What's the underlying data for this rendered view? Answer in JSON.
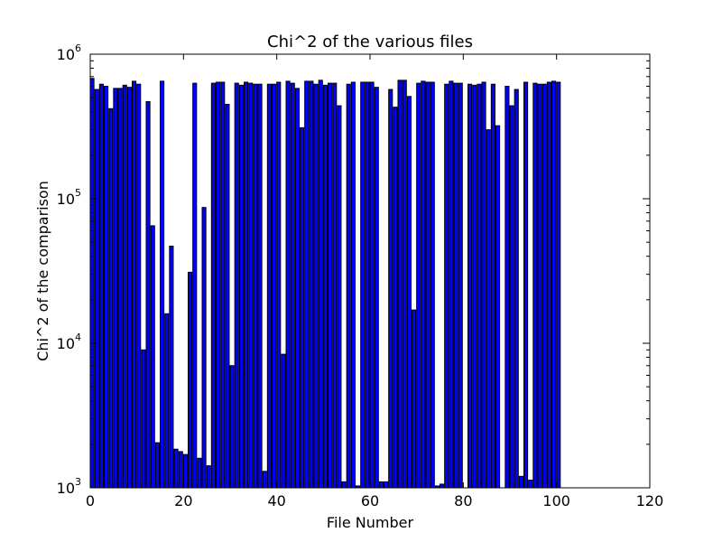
{
  "chart_data": {
    "type": "bar",
    "title": "Chi^2 of the various files",
    "xlabel": "File Number",
    "ylabel": "Chi^2 of the comparison",
    "xlim": [
      0,
      120
    ],
    "ylim": [
      1000,
      1000000
    ],
    "yscale": "log",
    "x_ticks": [
      0,
      20,
      40,
      60,
      80,
      100,
      120
    ],
    "y_ticks": [
      {
        "value": 1000,
        "base": "10",
        "exp": "3"
      },
      {
        "value": 10000,
        "base": "10",
        "exp": "4"
      },
      {
        "value": 100000,
        "base": "10",
        "exp": "5"
      },
      {
        "value": 1000000,
        "base": "10",
        "exp": "6"
      }
    ],
    "bar_width": 0.8,
    "bar_color": "#0000ff",
    "x": [
      0,
      1,
      2,
      3,
      4,
      5,
      6,
      7,
      8,
      9,
      10,
      11,
      12,
      13,
      14,
      15,
      16,
      17,
      18,
      19,
      20,
      21,
      22,
      23,
      24,
      25,
      26,
      27,
      28,
      29,
      30,
      31,
      32,
      33,
      34,
      35,
      36,
      37,
      38,
      39,
      40,
      41,
      42,
      43,
      44,
      45,
      46,
      47,
      48,
      49,
      50,
      51,
      52,
      53,
      54,
      55,
      56,
      57,
      58,
      59,
      60,
      61,
      62,
      63,
      64,
      65,
      66,
      67,
      68,
      69,
      70,
      71,
      72,
      73,
      74,
      75,
      76,
      77,
      78,
      79,
      80,
      81,
      82,
      83,
      84,
      85,
      86,
      87,
      88,
      89,
      90,
      91,
      92,
      93,
      94,
      95,
      96,
      97,
      98,
      99,
      100
    ],
    "values": [
      680000,
      570000,
      620000,
      600000,
      420000,
      580000,
      580000,
      610000,
      590000,
      650000,
      620000,
      9000,
      470000,
      65000,
      2050,
      650000,
      16000,
      47000,
      1850,
      1780,
      1700,
      31000,
      630000,
      1600,
      87000,
      1420,
      630000,
      640000,
      640000,
      450000,
      7000,
      630000,
      610000,
      640000,
      630000,
      620000,
      620000,
      1300,
      620000,
      620000,
      640000,
      8400,
      650000,
      630000,
      580000,
      310000,
      650000,
      650000,
      620000,
      660000,
      610000,
      630000,
      630000,
      440000,
      1100,
      620000,
      640000,
      1030,
      640000,
      640000,
      640000,
      590000,
      1100,
      1100,
      570000,
      430000,
      660000,
      660000,
      510000,
      17000,
      630000,
      650000,
      640000,
      640000,
      1030,
      1060,
      620000,
      650000,
      630000,
      630000,
      0,
      620000,
      610000,
      620000,
      640000,
      300000,
      620000,
      320000,
      0,
      600000,
      440000,
      570000,
      1200,
      640000,
      1130,
      630000,
      620000,
      620000,
      640000,
      650000,
      640000
    ]
  }
}
